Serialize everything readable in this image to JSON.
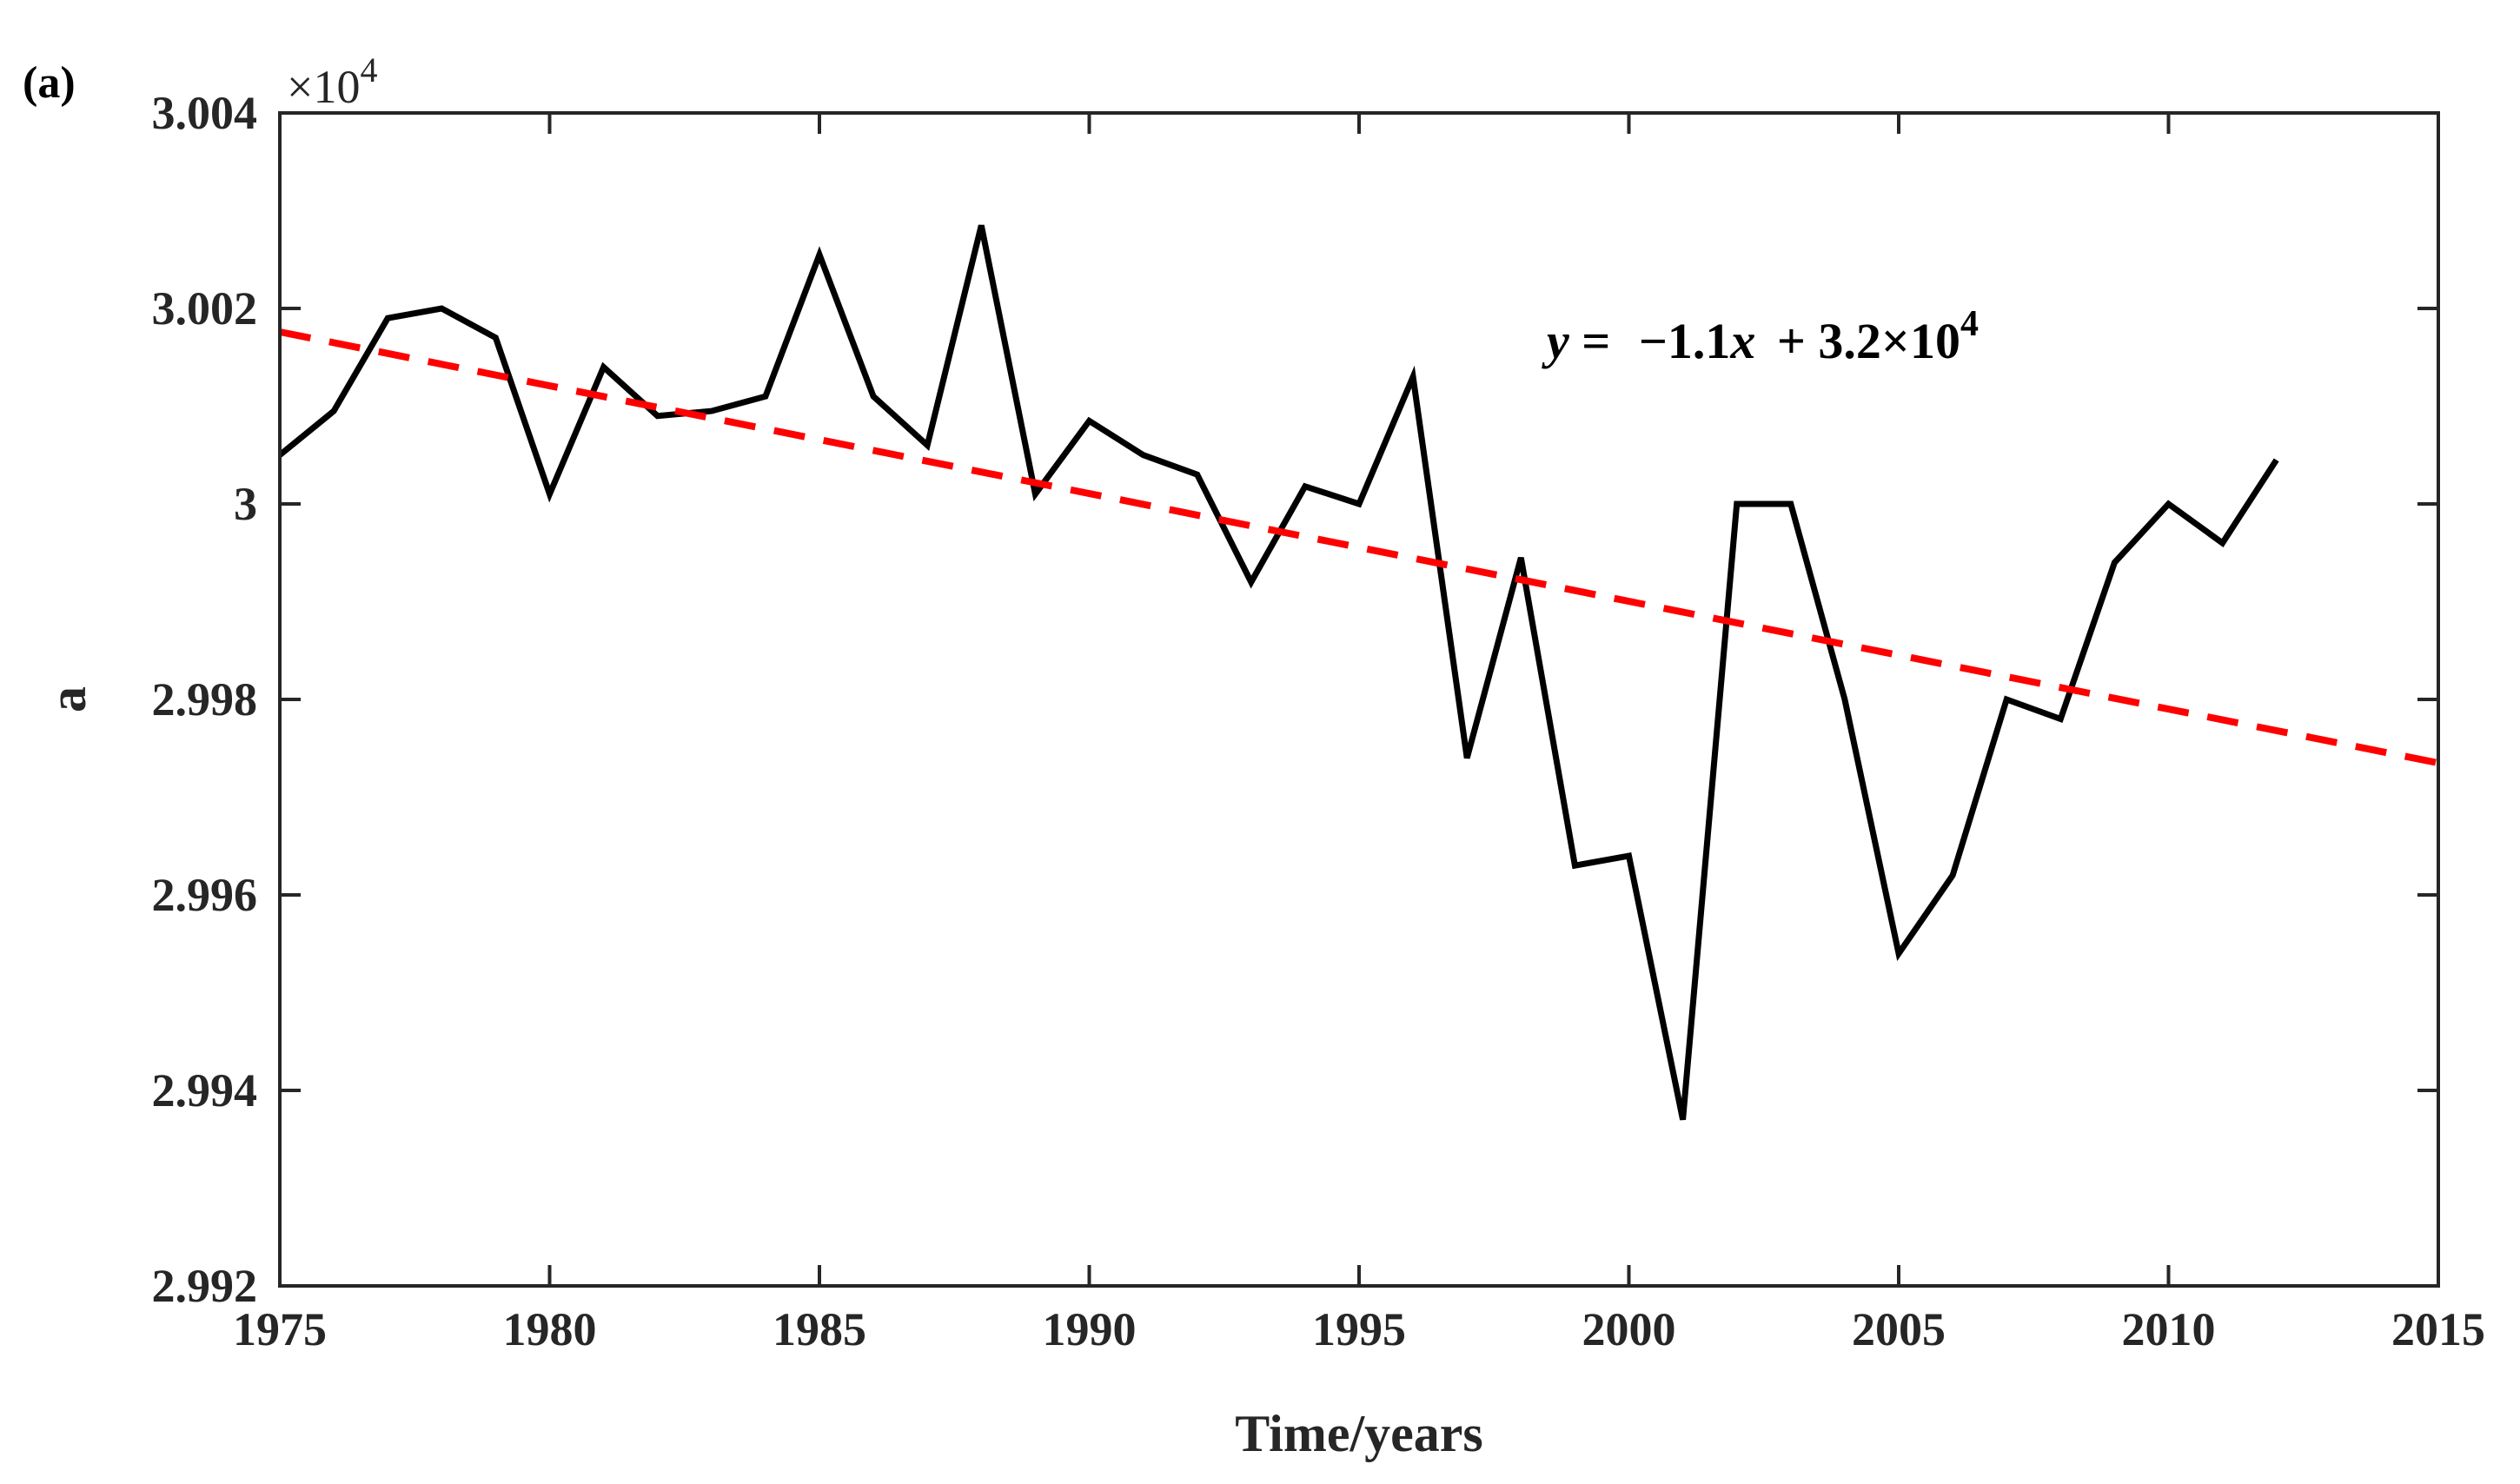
{
  "chart_data": {
    "type": "line",
    "panel_label": "(a)",
    "xlabel": "Time/years",
    "ylabel": "a",
    "y_exponent_label": {
      "base": "×10",
      "exp": "4"
    },
    "xlim": [
      1975,
      2015
    ],
    "ylim": [
      2.992,
      3.004
    ],
    "x_ticks": [
      1975,
      1980,
      1985,
      1990,
      1995,
      2000,
      2005,
      2010,
      2015
    ],
    "x_tick_labels": [
      "1975",
      "1980",
      "1985",
      "1990",
      "1995",
      "2000",
      "2005",
      "2010",
      "2015"
    ],
    "y_ticks": [
      2.992,
      2.994,
      2.996,
      2.998,
      3.0,
      3.002,
      3.004
    ],
    "y_tick_labels": [
      "2.992",
      "2.994",
      "2.996",
      "2.998",
      "3",
      "3.002",
      "3.004"
    ],
    "grid": false,
    "annotation": {
      "italic_y": "y",
      "eq_sign": " = ",
      "slope": "−1.1",
      "italic_x": "x",
      "intercept": " + 3.2×10",
      "intercept_exp": "4"
    },
    "series": [
      {
        "name": "a",
        "color": "#000000",
        "style": "solid",
        "x": [
          1975,
          1976,
          1977,
          1978,
          1979,
          1980,
          1981,
          1982,
          1983,
          1984,
          1985,
          1986,
          1987,
          1988,
          1989,
          1990,
          1991,
          1992,
          1993,
          1994,
          1995,
          1996,
          1997,
          1998,
          1999,
          2000,
          2001,
          2002,
          2003,
          2004,
          2005,
          2006,
          2007,
          2008,
          2009,
          2010,
          2011,
          2012
        ],
        "values": [
          3.0005,
          3.00095,
          3.0019,
          3.002,
          3.0017,
          3.0001,
          3.0014,
          3.0009,
          3.00095,
          3.0011,
          3.00255,
          3.0011,
          3.0006,
          3.00285,
          3.0001,
          3.00085,
          3.0005,
          3.0003,
          2.9992,
          3.00018,
          3.0,
          3.0013,
          2.9974,
          2.99945,
          2.9963,
          2.9964,
          2.9937,
          3.0,
          3.0,
          2.998,
          2.9954,
          2.9962,
          2.998,
          2.9978,
          2.9994,
          3.0,
          2.9996,
          3.00045
        ]
      },
      {
        "name": "linear fit",
        "color": "#ff0000",
        "style": "dashed",
        "x": [
          1975,
          2015
        ],
        "values": [
          3.00176,
          2.99735
        ]
      }
    ]
  }
}
